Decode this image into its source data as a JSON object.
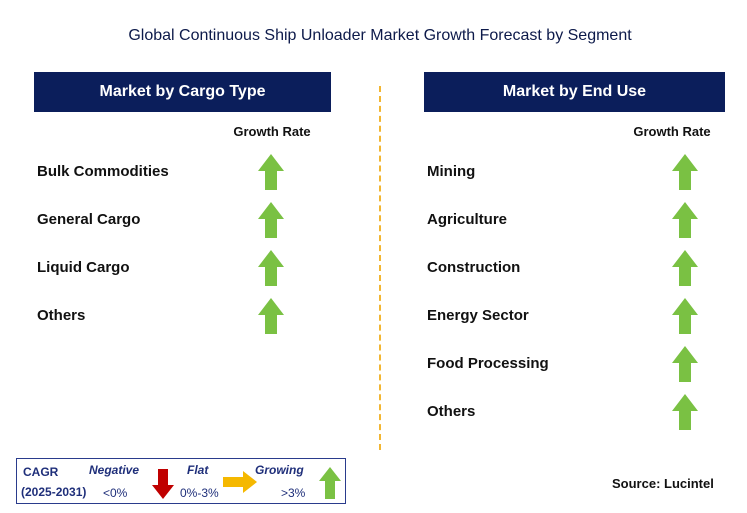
{
  "title": "Global Continuous Ship Unloader Market Growth Forecast by Segment",
  "colors": {
    "header_bg": "#0b1e5b",
    "growing": "#7ac143",
    "negative": "#c00000",
    "flat": "#f5b800",
    "divider": "#f2b632"
  },
  "left_panel": {
    "header": "Market by Cargo Type",
    "growth_rate_label": "Growth Rate",
    "rows": [
      {
        "label": "Bulk Commodities",
        "trend": "growing"
      },
      {
        "label": "General Cargo",
        "trend": "growing"
      },
      {
        "label": "Liquid Cargo",
        "trend": "growing"
      },
      {
        "label": "Others",
        "trend": "growing"
      }
    ]
  },
  "right_panel": {
    "header": "Market by End Use",
    "growth_rate_label": "Growth Rate",
    "rows": [
      {
        "label": "Mining",
        "trend": "growing"
      },
      {
        "label": "Agriculture",
        "trend": "growing"
      },
      {
        "label": "Construction",
        "trend": "growing"
      },
      {
        "label": "Energy Sector",
        "trend": "growing"
      },
      {
        "label": "Food Processing",
        "trend": "growing"
      },
      {
        "label": "Others",
        "trend": "growing"
      }
    ]
  },
  "legend": {
    "cagr_label": "CAGR",
    "period": "(2025-2031)",
    "negative_label": "Negative",
    "negative_range": "<0%",
    "flat_label": "Flat",
    "flat_range": "0%-3%",
    "growing_label": "Growing",
    "growing_range": ">3%"
  },
  "source": "Source: Lucintel",
  "chart_data": {
    "type": "table",
    "title": "Global Continuous Ship Unloader Market Growth Forecast by Segment",
    "tables": [
      {
        "name": "Market by Cargo Type",
        "column": "Growth Rate",
        "rows": [
          [
            "Bulk Commodities",
            "Growing"
          ],
          [
            "General Cargo",
            "Growing"
          ],
          [
            "Liquid Cargo",
            "Growing"
          ],
          [
            "Others",
            "Growing"
          ]
        ]
      },
      {
        "name": "Market by End Use",
        "column": "Growth Rate",
        "rows": [
          [
            "Mining",
            "Growing"
          ],
          [
            "Agriculture",
            "Growing"
          ],
          [
            "Construction",
            "Growing"
          ],
          [
            "Energy Sector",
            "Growing"
          ],
          [
            "Food Processing",
            "Growing"
          ],
          [
            "Others",
            "Growing"
          ]
        ]
      }
    ],
    "legend": [
      {
        "label": "Negative",
        "range": "<0%"
      },
      {
        "label": "Flat",
        "range": "0%-3%"
      },
      {
        "label": "Growing",
        "range": ">3%"
      }
    ]
  }
}
